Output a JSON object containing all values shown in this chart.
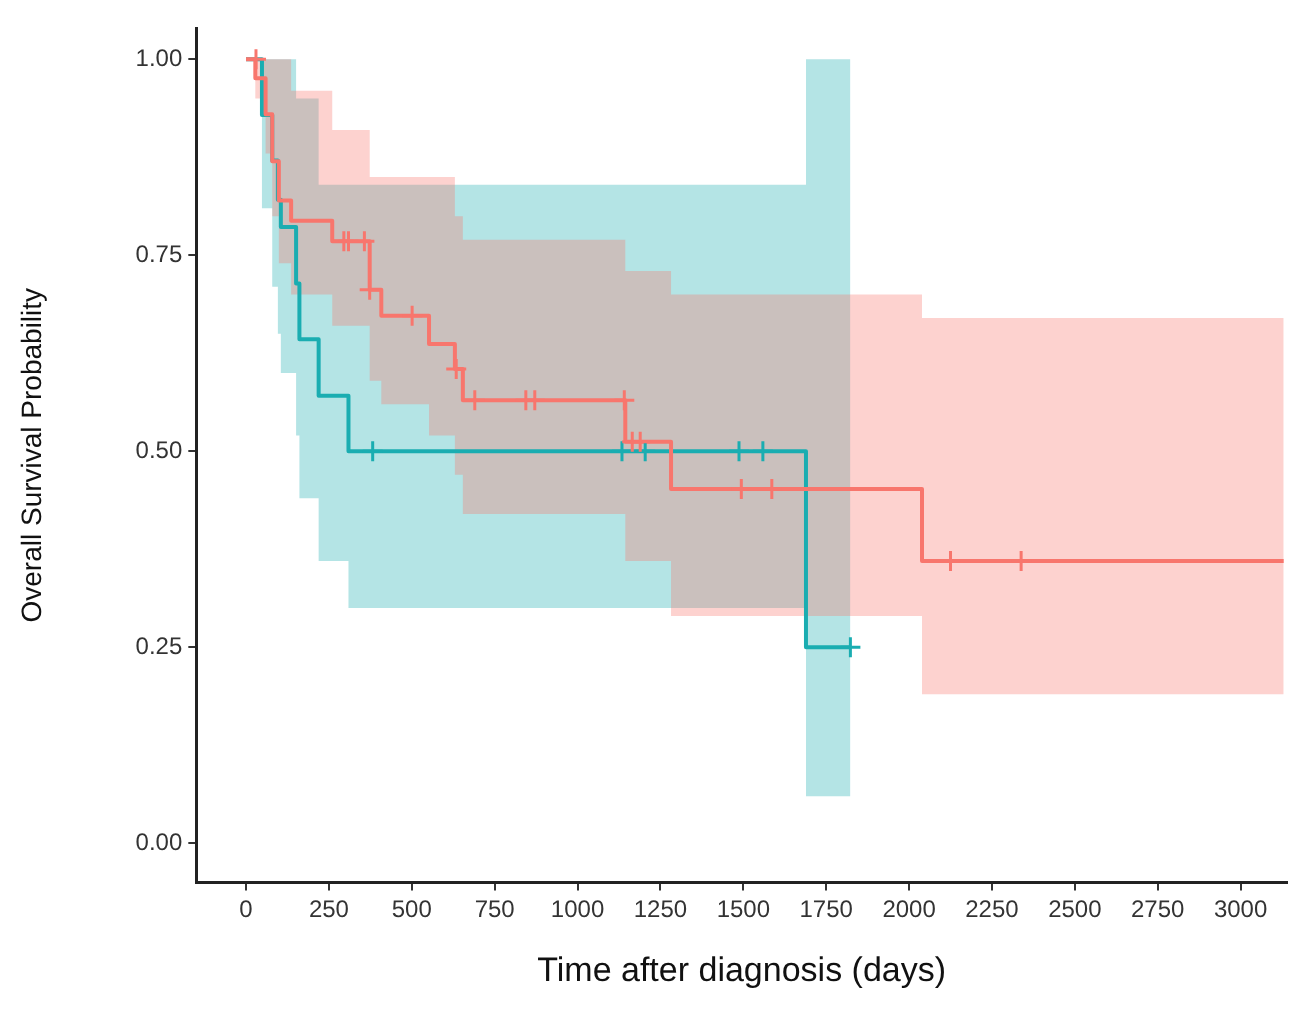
{
  "chart_data": {
    "type": "step",
    "xlabel": "Time after diagnosis (days)",
    "ylabel": "Overall Survival Probability",
    "series": [
      {
        "color": "#f8766d",
        "x": [
          0,
          28,
          59,
          79,
          99,
          136,
          260,
          373,
          408,
          552,
          630,
          654,
          1144,
          1282,
          2039,
          3130
        ],
        "values": [
          1,
          0.976,
          0.93,
          0.87,
          0.82,
          0.794,
          0.768,
          0.706,
          0.673,
          0.637,
          0.605,
          0.565,
          0.512,
          0.452,
          0.36,
          0.36
        ],
        "upper": [
          1,
          1,
          1,
          1,
          1,
          0.96,
          0.91,
          0.85,
          0.85,
          0.85,
          0.8,
          0.77,
          0.73,
          0.7,
          0.67,
          0.67
        ],
        "lower": [
          1,
          0.95,
          0.88,
          0.8,
          0.74,
          0.7,
          0.66,
          0.59,
          0.56,
          0.52,
          0.47,
          0.42,
          0.36,
          0.29,
          0.19,
          0.19
        ]
      },
      {
        "color": "#1aadb1",
        "x": [
          0,
          48,
          79,
          96,
          105,
          151,
          161,
          219,
          309,
          1689,
          1823
        ],
        "values": [
          1,
          0.929,
          0.871,
          0.821,
          0.786,
          0.714,
          0.643,
          0.571,
          0.5,
          0.25,
          0.25
        ],
        "upper": [
          1,
          1,
          1,
          1,
          1,
          0.95,
          0.95,
          0.84,
          0.84,
          1,
          1
        ],
        "lower": [
          1,
          0.81,
          0.71,
          0.65,
          0.6,
          0.52,
          0.44,
          0.36,
          0.3,
          0.06,
          0.06
        ]
      },
      {
        "type": "scatter",
        "marker": "cross",
        "color": "#f8766d",
        "x": [
          30,
          295,
          309,
          357,
          373,
          501,
          634,
          690,
          844,
          871,
          1141,
          1165,
          1189,
          1494,
          1586,
          2125,
          2338
        ],
        "values": [
          1,
          0.768,
          0.768,
          0.768,
          0.706,
          0.673,
          0.605,
          0.565,
          0.565,
          0.565,
          0.565,
          0.512,
          0.512,
          0.452,
          0.452,
          0.36,
          0.36
        ]
      },
      {
        "type": "scatter",
        "marker": "cross",
        "color": "#1aadb1",
        "x": [
          382,
          1134,
          1204,
          1487,
          1559,
          1823
        ],
        "values": [
          0.5,
          0.5,
          0.5,
          0.5,
          0.5,
          0.25
        ]
      }
    ],
    "xlim": [
      -150,
      3140
    ],
    "xticks": [
      0,
      250,
      500,
      750,
      1000,
      1250,
      1500,
      1750,
      2000,
      2250,
      2500,
      2750,
      3000
    ],
    "ylim": [
      -0.05,
      1.04
    ],
    "yticks": [
      {
        "value": 0,
        "label": "0.00"
      },
      {
        "value": 0.25,
        "label": "0.25"
      },
      {
        "value": 0.5,
        "label": "0.50"
      },
      {
        "value": 0.75,
        "label": "0.75"
      },
      {
        "value": 1,
        "label": "1.00"
      }
    ],
    "grid": false,
    "legend": false
  }
}
